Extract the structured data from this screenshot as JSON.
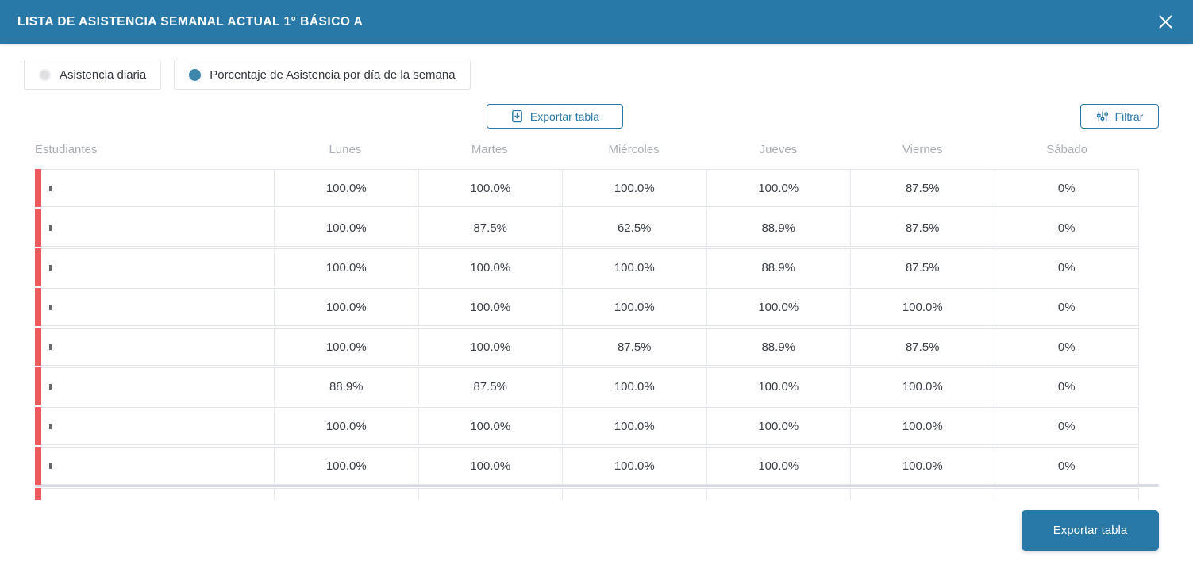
{
  "modal": {
    "title": "LISTA DE ASISTENCIA SEMANAL ACTUAL 1° BÁSICO A"
  },
  "view_toggle": {
    "options": [
      {
        "label": "Asistencia diaria",
        "selected": false
      },
      {
        "label": "Porcentaje de Asistencia por día de la semana",
        "selected": true
      }
    ]
  },
  "toolbar": {
    "export_label": "Exportar tabla",
    "filter_label": "Filtrar"
  },
  "footer": {
    "export_label": "Exportar tabla"
  },
  "icons": {
    "close": "close-icon",
    "export": "file-download-icon",
    "filter": "sliders-icon"
  },
  "colors": {
    "header_bg": "#2879a8",
    "accent": "#2879a8",
    "row_accent": "#ee5a5c",
    "column_header_text": "#a9aeb6"
  },
  "table": {
    "columns": [
      "Estudiantes",
      "Lunes",
      "Martes",
      "Miércoles",
      "Jueves",
      "Viernes",
      "Sábado"
    ],
    "rows": [
      {
        "student": "",
        "values": [
          "100.0%",
          "100.0%",
          "100.0%",
          "100.0%",
          "87.5%",
          "0%"
        ]
      },
      {
        "student": "",
        "values": [
          "100.0%",
          "87.5%",
          "62.5%",
          "88.9%",
          "87.5%",
          "0%"
        ]
      },
      {
        "student": "",
        "values": [
          "100.0%",
          "100.0%",
          "100.0%",
          "88.9%",
          "87.5%",
          "0%"
        ]
      },
      {
        "student": "",
        "values": [
          "100.0%",
          "100.0%",
          "100.0%",
          "100.0%",
          "100.0%",
          "0%"
        ]
      },
      {
        "student": "",
        "values": [
          "100.0%",
          "100.0%",
          "87.5%",
          "88.9%",
          "87.5%",
          "0%"
        ]
      },
      {
        "student": "",
        "values": [
          "88.9%",
          "87.5%",
          "100.0%",
          "100.0%",
          "100.0%",
          "0%"
        ]
      },
      {
        "student": "",
        "values": [
          "100.0%",
          "100.0%",
          "100.0%",
          "100.0%",
          "100.0%",
          "0%"
        ]
      },
      {
        "student": "",
        "values": [
          "100.0%",
          "100.0%",
          "100.0%",
          "100.0%",
          "100.0%",
          "0%"
        ]
      }
    ],
    "has_partial_next_row": true
  }
}
